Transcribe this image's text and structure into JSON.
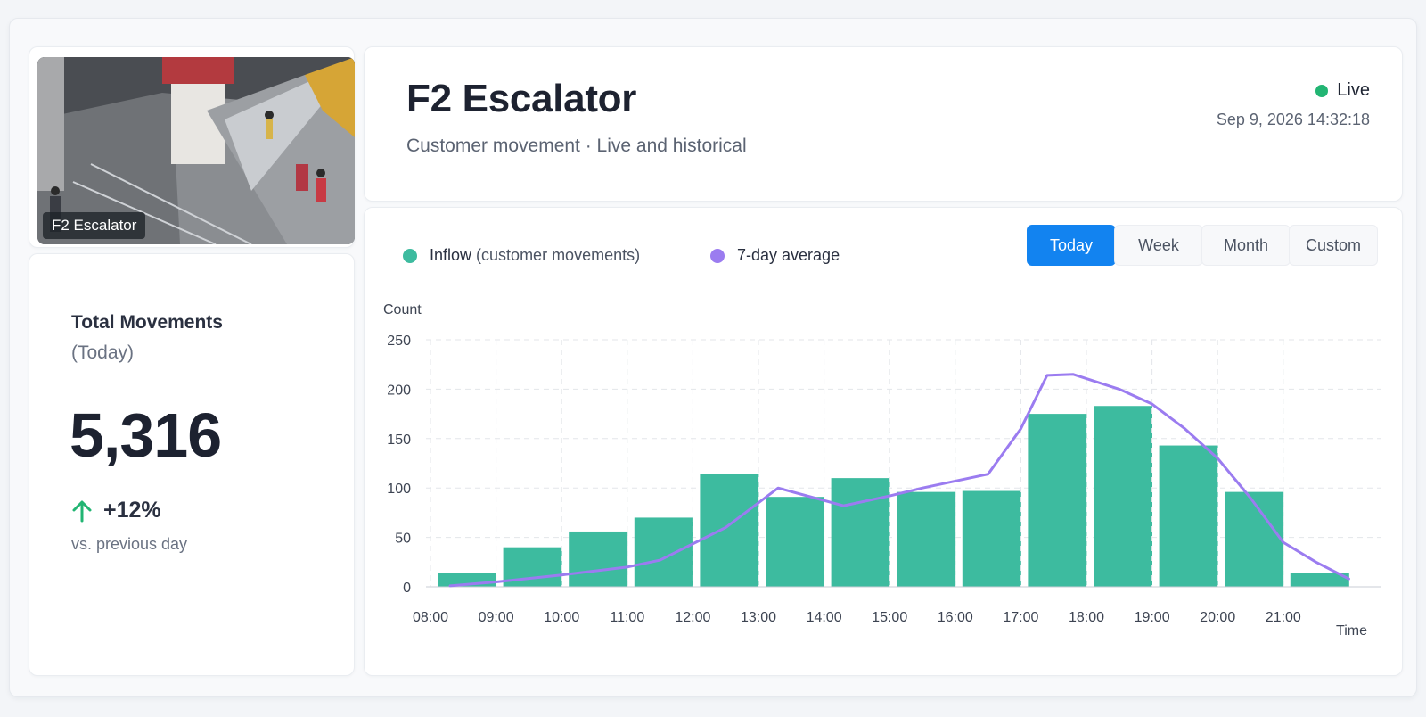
{
  "camera": {
    "caption": "F2 Escalator"
  },
  "header": {
    "title": "F2 Escalator",
    "subtitle": "Customer movement · Live and historical",
    "live_label": "Live",
    "timestamp": "Sep 9, 2026 14:32:18"
  },
  "stats": {
    "title": "Total Movements",
    "period": "(Today)",
    "value": "5,316",
    "change": "+12%",
    "change_note": "vs. previous day"
  },
  "legend": {
    "inflow_label": "Inflow",
    "inflow_detail": "(customer movements)",
    "average_label": "7-day average"
  },
  "tabs": [
    {
      "label": "Today",
      "active": true
    },
    {
      "label": "Week",
      "active": false
    },
    {
      "label": "Month",
      "active": false
    },
    {
      "label": "Custom",
      "active": false
    }
  ],
  "colors": {
    "inflow": "#3dbb9f",
    "average": "#9b7cf0",
    "accent": "#1283f0",
    "live": "#22b573"
  },
  "chart_data": {
    "type": "bar",
    "ylabel": "Count",
    "xlabel": "Time",
    "ylim": [
      0,
      250
    ],
    "yticks": [
      0,
      50,
      100,
      150,
      200,
      250
    ],
    "grid": true,
    "categories": [
      "08:00",
      "09:00",
      "10:00",
      "11:00",
      "12:00",
      "13:00",
      "14:00",
      "15:00",
      "16:00",
      "17:00",
      "18:00",
      "19:00",
      "20:00",
      "21:00"
    ],
    "series": [
      {
        "name": "Inflow",
        "type": "bar",
        "values": [
          14,
          40,
          56,
          70,
          114,
          91,
          110,
          96,
          97,
          175,
          183,
          143,
          96,
          14
        ]
      },
      {
        "name": "7-day average",
        "type": "line",
        "x": [
          8.3,
          9.0,
          10.0,
          11.0,
          11.5,
          12.5,
          13.3,
          14.3,
          15.0,
          15.5,
          16.5,
          17.0,
          17.4,
          17.8,
          18.5,
          19.0,
          19.5,
          20.0,
          20.5,
          21.0,
          21.5,
          22.0
        ],
        "values": [
          1,
          5,
          12,
          20,
          27,
          60,
          100,
          82,
          92,
          100,
          114,
          160,
          214,
          215,
          200,
          185,
          160,
          130,
          90,
          45,
          25,
          8
        ]
      }
    ]
  }
}
